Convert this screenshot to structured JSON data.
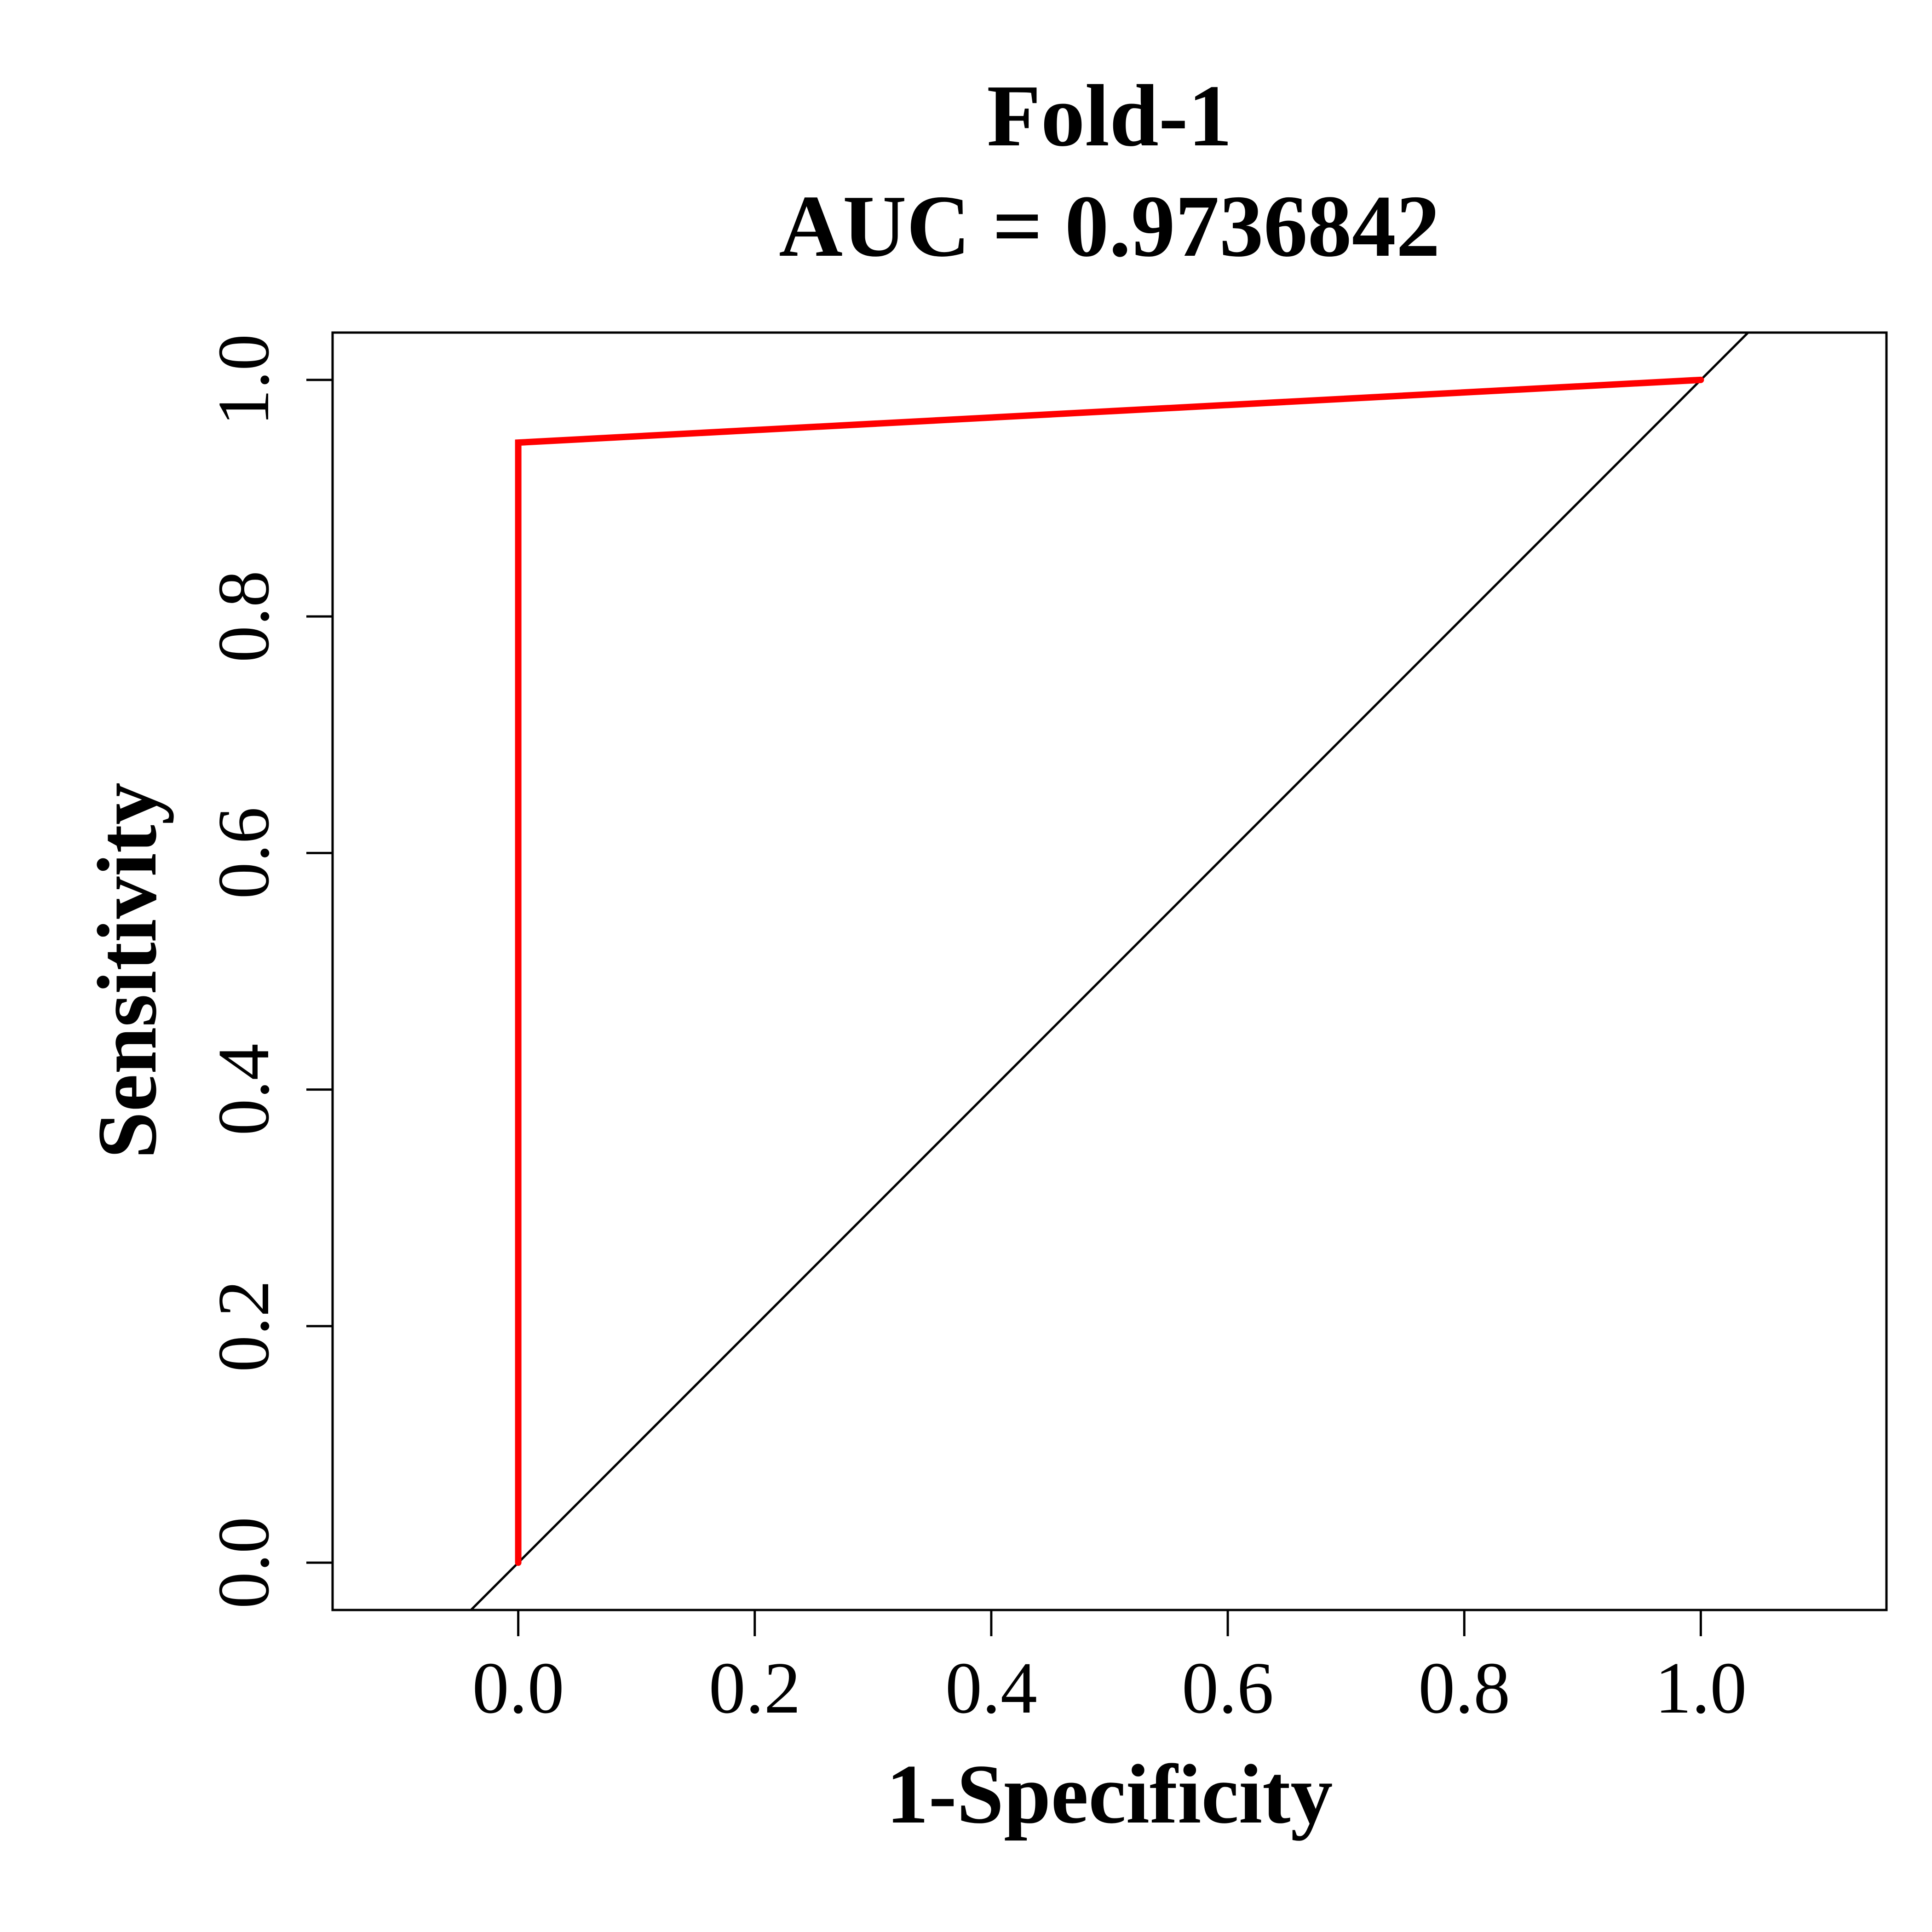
{
  "chart_data": {
    "type": "line",
    "title": "Fold-1",
    "subtitle": "AUC = 0.9736842",
    "xlabel": "1-Specificity",
    "ylabel": "Sensitivity",
    "xlim": [
      -0.157,
      1.157
    ],
    "ylim": [
      -0.04,
      1.04
    ],
    "x_ticks": [
      0.0,
      0.2,
      0.4,
      0.6,
      0.8,
      1.0
    ],
    "x_tick_labels": [
      "0.0",
      "0.2",
      "0.4",
      "0.6",
      "0.8",
      "1.0"
    ],
    "y_ticks": [
      0.0,
      0.2,
      0.4,
      0.6,
      0.8,
      1.0
    ],
    "y_tick_labels": [
      "0.0",
      "0.2",
      "0.4",
      "0.6",
      "0.8",
      "1.0"
    ],
    "grid": false,
    "series": [
      {
        "color": "#ff0000",
        "x": [
          0.0,
          0.0,
          1.0
        ],
        "y": [
          0.0,
          0.947,
          1.0
        ]
      }
    ],
    "reference_line": {
      "type": "diagonal",
      "intercept": 0,
      "slope": 1,
      "color": "#000000"
    }
  }
}
